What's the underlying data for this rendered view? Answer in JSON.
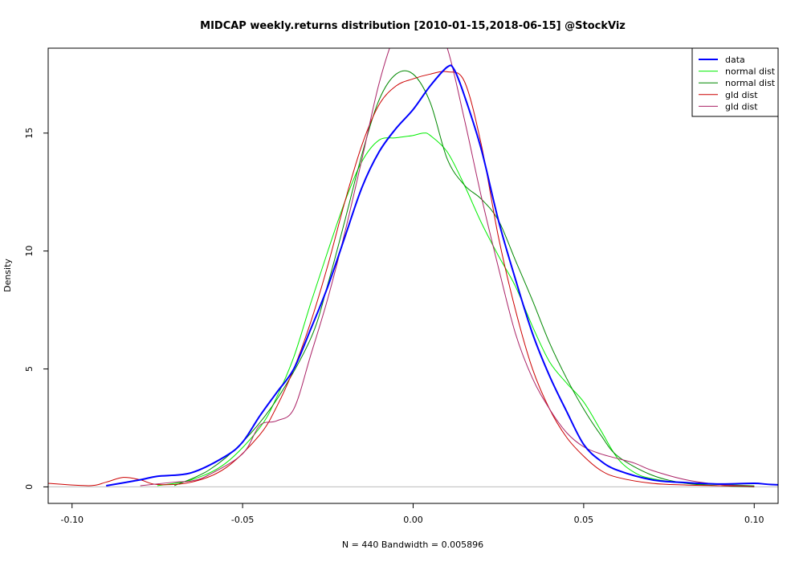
{
  "chart_data": {
    "type": "line",
    "title": "MIDCAP weekly.returns distribution [2010-01-15,2018-06-15] @StockViz",
    "xlabel": "N = 440   Bandwidth = 0.005896",
    "ylabel": "Density",
    "xlim": [
      -0.107,
      0.107
    ],
    "ylim": [
      -0.7,
      18.6
    ],
    "x_ticks": [
      -0.1,
      -0.05,
      0.0,
      0.05,
      0.1
    ],
    "x_tick_labels": [
      "-0.10",
      "-0.05",
      "0.00",
      "0.05",
      "0.10"
    ],
    "y_ticks": [
      0,
      5,
      10,
      15
    ],
    "y_tick_labels": [
      "0",
      "5",
      "10",
      "15"
    ],
    "baseline": 0,
    "grid": false,
    "legend_position": "top-right",
    "series": [
      {
        "name": "data",
        "color": "#0000ff",
        "width": 2,
        "x": [
          -0.09,
          -0.08,
          -0.075,
          -0.065,
          -0.055,
          -0.05,
          -0.045,
          -0.04,
          -0.035,
          -0.03,
          -0.025,
          -0.02,
          -0.015,
          -0.01,
          -0.005,
          0.0,
          0.005,
          0.01,
          0.012,
          0.015,
          0.02,
          0.025,
          0.03,
          0.035,
          0.04,
          0.045,
          0.05,
          0.055,
          0.06,
          0.07,
          0.08,
          0.09,
          0.1,
          0.105,
          0.12
        ],
        "y": [
          0.05,
          0.3,
          0.45,
          0.6,
          1.3,
          1.9,
          3.0,
          4.0,
          5.0,
          6.7,
          8.5,
          10.6,
          12.7,
          14.2,
          15.2,
          16.0,
          17.0,
          17.8,
          17.7,
          16.6,
          14.3,
          11.3,
          8.8,
          6.5,
          4.7,
          3.2,
          1.8,
          1.1,
          0.7,
          0.3,
          0.18,
          0.12,
          0.15,
          0.1,
          0.0
        ]
      },
      {
        "name": "normal dist",
        "color": "#00ee00",
        "width": 1,
        "x": [
          -0.075,
          -0.065,
          -0.055,
          -0.045,
          -0.04,
          -0.035,
          -0.03,
          -0.025,
          -0.02,
          -0.015,
          -0.01,
          -0.005,
          0.0,
          0.003,
          0.005,
          0.01,
          0.015,
          0.02,
          0.025,
          0.03,
          0.035,
          0.04,
          0.045,
          0.05,
          0.055,
          0.06,
          0.065,
          0.07,
          0.08,
          0.09,
          0.1
        ],
        "y": [
          0.05,
          0.3,
          1.0,
          2.5,
          3.8,
          5.5,
          7.8,
          10.0,
          12.1,
          13.8,
          14.7,
          14.8,
          14.9,
          15.0,
          14.9,
          14.2,
          12.8,
          11.2,
          9.8,
          8.5,
          6.8,
          5.3,
          4.4,
          3.6,
          2.4,
          1.2,
          0.6,
          0.35,
          0.15,
          0.1,
          0.05
        ]
      },
      {
        "name": "normal dist",
        "color": "#008800",
        "width": 1,
        "x": [
          -0.07,
          -0.06,
          -0.05,
          -0.04,
          -0.03,
          -0.025,
          -0.02,
          -0.015,
          -0.01,
          -0.005,
          0.0,
          0.005,
          0.01,
          0.015,
          0.02,
          0.025,
          0.03,
          0.035,
          0.04,
          0.045,
          0.05,
          0.055,
          0.06,
          0.07,
          0.08,
          0.09,
          0.1
        ],
        "y": [
          0.05,
          0.7,
          1.9,
          3.7,
          6.3,
          8.6,
          11.3,
          14.1,
          16.4,
          17.5,
          17.5,
          16.3,
          13.9,
          12.8,
          12.2,
          11.3,
          9.6,
          7.9,
          6.1,
          4.6,
          3.3,
          2.2,
          1.3,
          0.5,
          0.15,
          0.05,
          0.0
        ]
      },
      {
        "name": "gld dist",
        "color": "#cc0000",
        "width": 1,
        "x": [
          -0.107,
          -0.095,
          -0.09,
          -0.085,
          -0.08,
          -0.075,
          -0.065,
          -0.055,
          -0.045,
          -0.04,
          -0.035,
          -0.03,
          -0.025,
          -0.02,
          -0.015,
          -0.01,
          -0.005,
          0.0,
          0.005,
          0.01,
          0.015,
          0.02,
          0.025,
          0.03,
          0.035,
          0.04,
          0.045,
          0.05,
          0.055,
          0.06,
          0.07,
          0.08,
          0.09,
          0.1
        ],
        "y": [
          0.15,
          0.05,
          0.2,
          0.4,
          0.3,
          0.1,
          0.2,
          0.8,
          2.2,
          3.4,
          5.0,
          7.0,
          9.4,
          12.1,
          14.5,
          16.2,
          17.0,
          17.3,
          17.5,
          17.6,
          17.2,
          14.5,
          10.6,
          7.5,
          5.0,
          3.3,
          2.1,
          1.3,
          0.7,
          0.4,
          0.15,
          0.08,
          0.05,
          0.02
        ]
      },
      {
        "name": "gld dist",
        "color": "#aa2266",
        "width": 1,
        "x": [
          -0.08,
          -0.07,
          -0.065,
          -0.06,
          -0.05,
          -0.045,
          -0.04,
          -0.035,
          -0.03,
          -0.025,
          -0.02,
          -0.015,
          -0.01,
          -0.005,
          0.0,
          0.005,
          0.01,
          0.015,
          0.02,
          0.025,
          0.03,
          0.035,
          0.04,
          0.045,
          0.05,
          0.055,
          0.06,
          0.065,
          0.07,
          0.08,
          0.09,
          0.1
        ],
        "y": [
          0.05,
          0.2,
          0.25,
          0.5,
          1.4,
          2.6,
          2.8,
          3.3,
          5.6,
          8.0,
          10.8,
          13.9,
          17.1,
          19.3,
          20.2,
          20.0,
          18.6,
          15.6,
          12.3,
          9.3,
          6.5,
          4.6,
          3.3,
          2.3,
          1.7,
          1.4,
          1.2,
          1.0,
          0.7,
          0.3,
          0.1,
          0.03
        ]
      }
    ]
  }
}
